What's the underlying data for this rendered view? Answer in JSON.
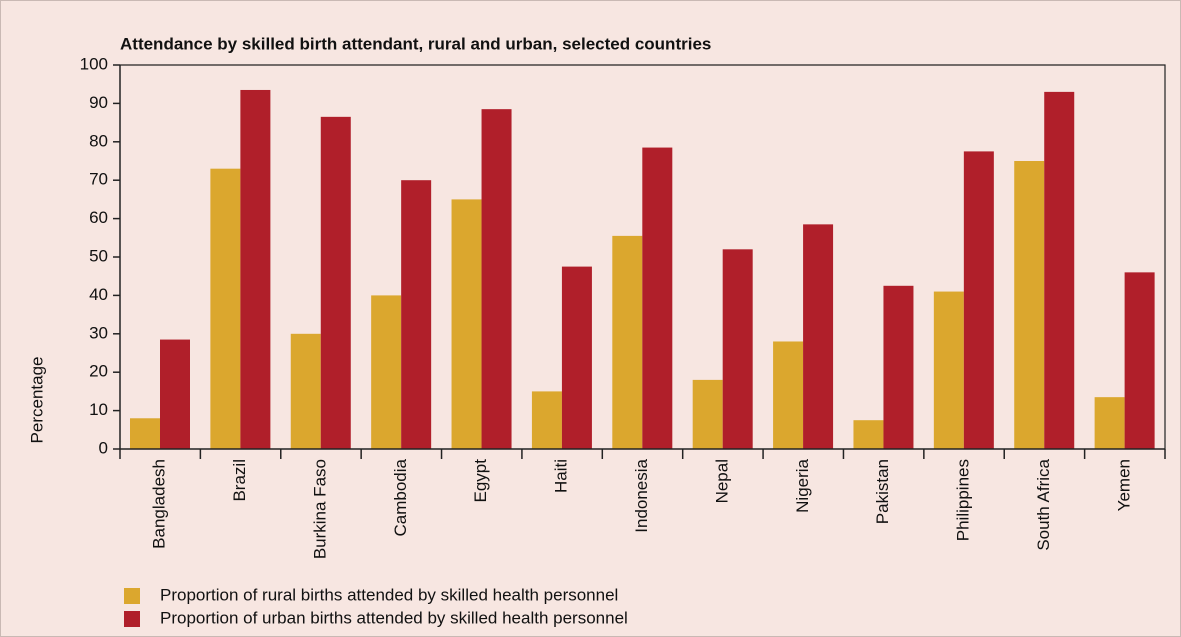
{
  "chart_data": {
    "type": "bar",
    "title": "Attendance by skilled birth attendant, rural and urban, selected countries",
    "y_label": "Percentage",
    "categories": [
      "Bangladesh",
      "Brazil",
      "Burkina Faso",
      "Cambodia",
      "Egypt",
      "Haiti",
      "Indonesia",
      "Nepal",
      "Nigeria",
      "Pakistan",
      "Philippines",
      "South Africa",
      "Yemen"
    ],
    "series": [
      {
        "name": "Proportion of rural births attended by skilled health personnel",
        "color": "#dba72e",
        "values": [
          8,
          73,
          30,
          40,
          65,
          15,
          55.5,
          18,
          28,
          7.5,
          41,
          75,
          13.5
        ]
      },
      {
        "name": "Proportion of urban births attended by skilled health personnel",
        "color": "#b01f2a",
        "values": [
          28.5,
          93.5,
          86.5,
          70,
          88.5,
          47.5,
          78.5,
          52,
          58.5,
          42.5,
          77.5,
          93,
          46
        ]
      }
    ],
    "ylim": [
      0,
      100
    ],
    "yticks": [
      0,
      10,
      20,
      30,
      40,
      50,
      60,
      70,
      80,
      90,
      100
    ],
    "legend": "bottom-left"
  }
}
